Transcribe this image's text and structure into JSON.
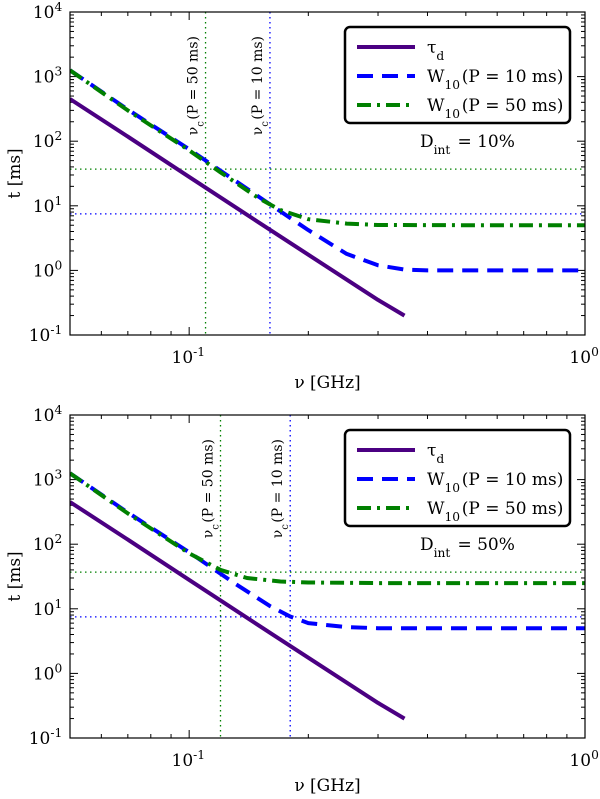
{
  "chart_data": [
    {
      "type": "line",
      "xscale": "log",
      "yscale": "log",
      "xlim": [
        0.05,
        1.0
      ],
      "ylim": [
        0.1,
        10000
      ],
      "xlabel": "ν [GHz]",
      "ylabel": "t [ms]",
      "xtick_labels": [
        "10^-1",
        "10^0"
      ],
      "ytick_labels": [
        "10^-1",
        "10^0",
        "10^1",
        "10^2",
        "10^3",
        "10^4"
      ],
      "annotation": "D_int = 10%",
      "legend": [
        "τ_d",
        "W_10(P = 10 ms)",
        "W_10(P = 50 ms)"
      ],
      "legend_position": "top-right",
      "series": [
        {
          "name": "τ_d",
          "color": "#4b0082",
          "style": "solid",
          "x": [
            0.05,
            0.07,
            0.1,
            0.15,
            0.2,
            0.3,
            0.35
          ],
          "y": [
            450,
            118,
            28,
            5.5,
            1.75,
            0.35,
            0.2
          ]
        },
        {
          "name": "W_10(P = 10 ms)",
          "color": "#0000ff",
          "style": "dashed",
          "x": [
            0.05,
            0.07,
            0.1,
            0.13,
            0.16,
            0.2,
            0.25,
            0.3,
            0.35,
            0.4,
            0.5,
            0.7,
            1.0
          ],
          "y": [
            1250,
            310,
            75,
            25,
            10.5,
            4.2,
            1.8,
            1.2,
            1.03,
            1.0,
            1.0,
            1.0,
            1.0
          ]
        },
        {
          "name": "W_10(P = 50 ms)",
          "color": "#008000",
          "style": "dashdot",
          "x": [
            0.05,
            0.07,
            0.1,
            0.12,
            0.15,
            0.17,
            0.2,
            0.25,
            0.3,
            0.5,
            1.0
          ],
          "y": [
            1250,
            300,
            72,
            33,
            13,
            8.6,
            6.2,
            5.3,
            5.05,
            5.0,
            5.0
          ]
        }
      ],
      "vlines": [
        {
          "x": 0.11,
          "label": "ν_c(P = 50 ms)",
          "color": "#008000"
        },
        {
          "x": 0.16,
          "label": "ν_c(P = 10 ms)",
          "color": "#0000ff"
        }
      ],
      "hlines": [
        {
          "y": 37,
          "color": "#008000"
        },
        {
          "y": 7.5,
          "color": "#0000ff"
        }
      ]
    },
    {
      "type": "line",
      "xscale": "log",
      "yscale": "log",
      "xlim": [
        0.05,
        1.0
      ],
      "ylim": [
        0.1,
        10000
      ],
      "xlabel": "ν [GHz]",
      "ylabel": "t [ms]",
      "xtick_labels": [
        "10^-1",
        "10^0"
      ],
      "ytick_labels": [
        "10^-1",
        "10^0",
        "10^1",
        "10^2",
        "10^3",
        "10^4"
      ],
      "annotation": "D_int = 50%",
      "legend": [
        "τ_d",
        "W_10(P = 10 ms)",
        "W_10(P = 50 ms)"
      ],
      "legend_position": "top-right",
      "series": [
        {
          "name": "τ_d",
          "color": "#4b0082",
          "style": "solid",
          "x": [
            0.05,
            0.07,
            0.1,
            0.15,
            0.2,
            0.3,
            0.35
          ],
          "y": [
            450,
            118,
            28,
            5.5,
            1.75,
            0.35,
            0.2
          ]
        },
        {
          "name": "W_10(P = 10 ms)",
          "color": "#0000ff",
          "style": "dashed",
          "x": [
            0.05,
            0.07,
            0.1,
            0.13,
            0.16,
            0.18,
            0.2,
            0.25,
            0.3,
            0.5,
            1.0
          ],
          "y": [
            1250,
            310,
            75,
            25,
            11,
            7.6,
            6.0,
            5.2,
            5.0,
            5.0,
            5.0
          ]
        },
        {
          "name": "W_10(P = 50 ms)",
          "color": "#008000",
          "style": "dashdot",
          "x": [
            0.05,
            0.07,
            0.1,
            0.12,
            0.14,
            0.17,
            0.2,
            0.3,
            0.5,
            1.0
          ],
          "y": [
            1250,
            300,
            72,
            40,
            30,
            26.5,
            25.5,
            25,
            25,
            25
          ]
        }
      ],
      "vlines": [
        {
          "x": 0.12,
          "label": "ν_c(P = 50 ms)",
          "color": "#008000"
        },
        {
          "x": 0.18,
          "label": "ν_c(P = 10 ms)",
          "color": "#0000ff"
        }
      ],
      "hlines": [
        {
          "y": 37,
          "color": "#008000"
        },
        {
          "y": 7.5,
          "color": "#0000ff"
        }
      ]
    }
  ]
}
